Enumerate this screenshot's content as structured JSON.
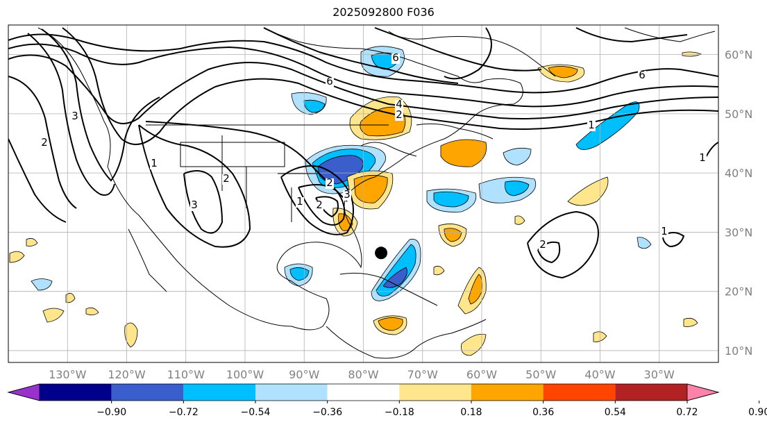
{
  "title": "2025092800 F036",
  "map": {
    "projection": "lat-lon",
    "lon_range": [
      -140,
      -20
    ],
    "lat_range": [
      8,
      65
    ],
    "lon_ticks": [
      "130°W",
      "120°W",
      "110°W",
      "100°W",
      "90°W",
      "80°W",
      "70°W",
      "60°W",
      "50°W",
      "40°W",
      "30°W"
    ],
    "lat_ticks": [
      "10°N",
      "20°N",
      "30°N",
      "40°N",
      "50°N",
      "60°N"
    ],
    "grid": true,
    "marker": {
      "name": "storm-center-marker",
      "lon": -77,
      "lat": 26.5
    }
  },
  "contour_labels": [
    "6",
    "4",
    "2",
    "1",
    "2",
    "3",
    "1",
    "2",
    "3",
    "2",
    "6",
    "6",
    "1",
    "1",
    "2",
    "1",
    "3",
    "2"
  ],
  "colorbar": {
    "ticks": [
      "−0.90",
      "−0.72",
      "−0.54",
      "−0.36",
      "−0.18",
      "0.18",
      "0.36",
      "0.54",
      "0.72",
      "0.90"
    ],
    "colors": [
      "#9932cc",
      "#00008b",
      "#3a5fcd",
      "#00bfff",
      "#b0e2ff",
      "#ffffff",
      "#ffe68c",
      "#ffa500",
      "#ff4500",
      "#b22222",
      "#ff82ab"
    ]
  }
}
